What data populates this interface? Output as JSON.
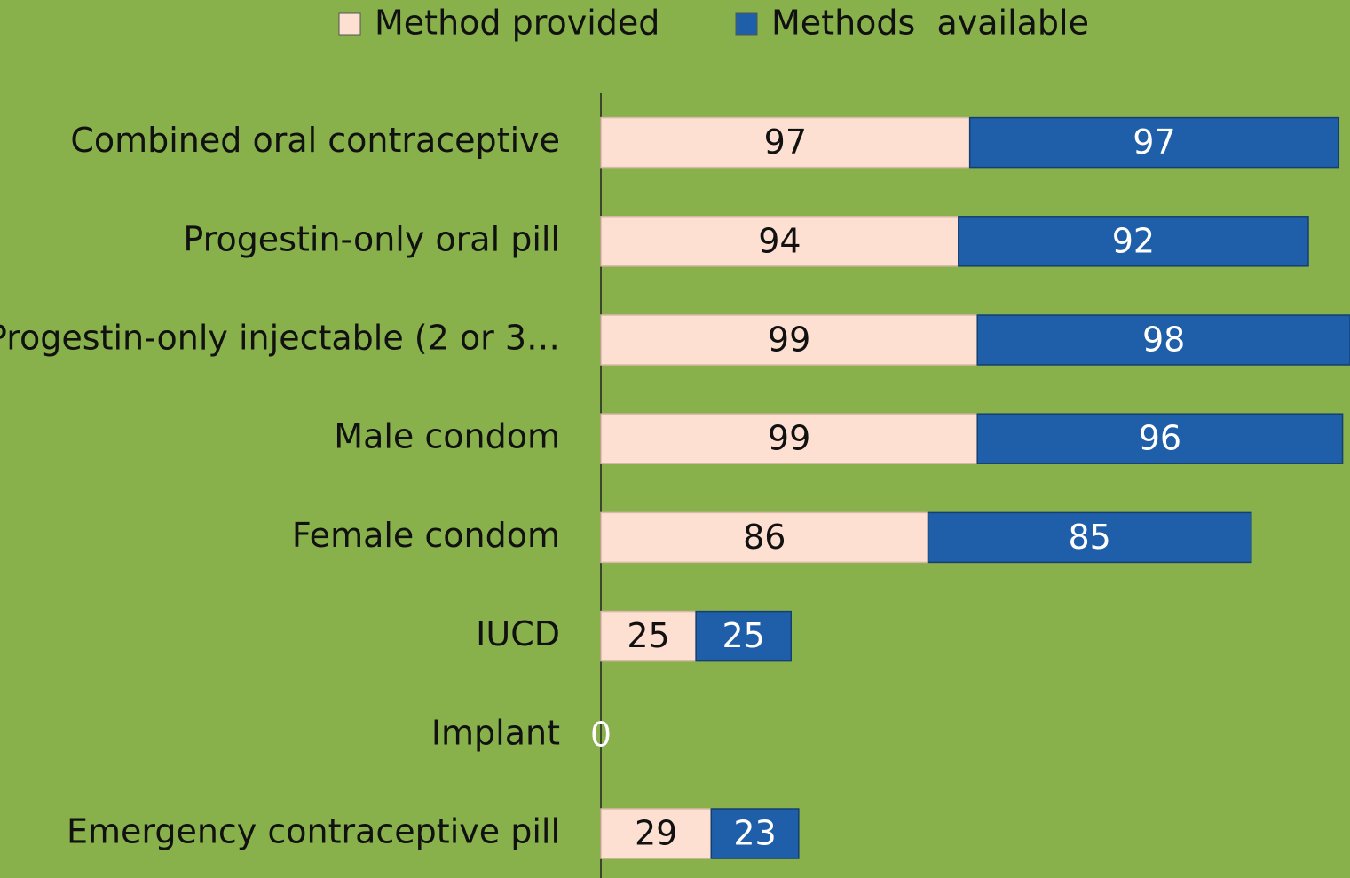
{
  "chart_data": {
    "type": "stacked-barh",
    "categories": [
      "Combined oral contraceptive",
      "Progestin-only oral pill",
      "Progestin-only injectable (2 or 3…",
      "Male condom",
      "Female condom",
      "IUCD",
      "Implant",
      "Emergency contraceptive pill"
    ],
    "series": [
      {
        "name": "Method provided",
        "color": "#fde0d2",
        "values": [
          97,
          94,
          99,
          99,
          86,
          25,
          0,
          29
        ]
      },
      {
        "name": "Methods  available",
        "color": "#1f5ea8",
        "values": [
          97,
          92,
          98,
          96,
          85,
          25,
          0,
          23
        ]
      }
    ],
    "legend": "top"
  }
}
